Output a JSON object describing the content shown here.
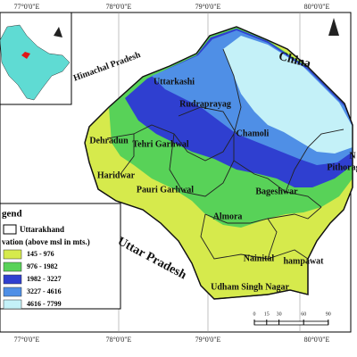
{
  "graticule": {
    "top": [
      "77°0'0\"E",
      "78°0'0\"E",
      "79°0'0\"E",
      "80°0'0\"E"
    ],
    "bottom": [
      "77°0'0\"E",
      "78°0'0\"E",
      "79°0'0\"E",
      "80°0'0\"E"
    ]
  },
  "places": [
    "Himachal Pradesh",
    "China",
    "Uttarkashi",
    "Chamoli",
    "Rudraprayag",
    "Tehri Garhwal",
    "Dehradun",
    "Haridwar",
    "Pauri Garhwal",
    "Bageshwar",
    "Pithorag",
    "Almora",
    "Nainital",
    "hampawat",
    "Udham Singh Nagar",
    "Uttar Pradesh",
    "N"
  ],
  "legend": {
    "title": "gend",
    "state": "Uttarakhand",
    "subtitle": "vation (above msl in mts.)",
    "classes": [
      {
        "label": "145 - 976",
        "color": "#d6ea4c"
      },
      {
        "label": "976 - 1982",
        "color": "#58d258"
      },
      {
        "label": "1982 - 3227",
        "color": "#2f3fd0"
      },
      {
        "label": "3227 - 4616",
        "color": "#4f8fe6"
      },
      {
        "label": "4616 - 7799",
        "color": "#c4f1f8"
      }
    ]
  },
  "scale": {
    "ticks": [
      0,
      15,
      30,
      60,
      90
    ]
  }
}
